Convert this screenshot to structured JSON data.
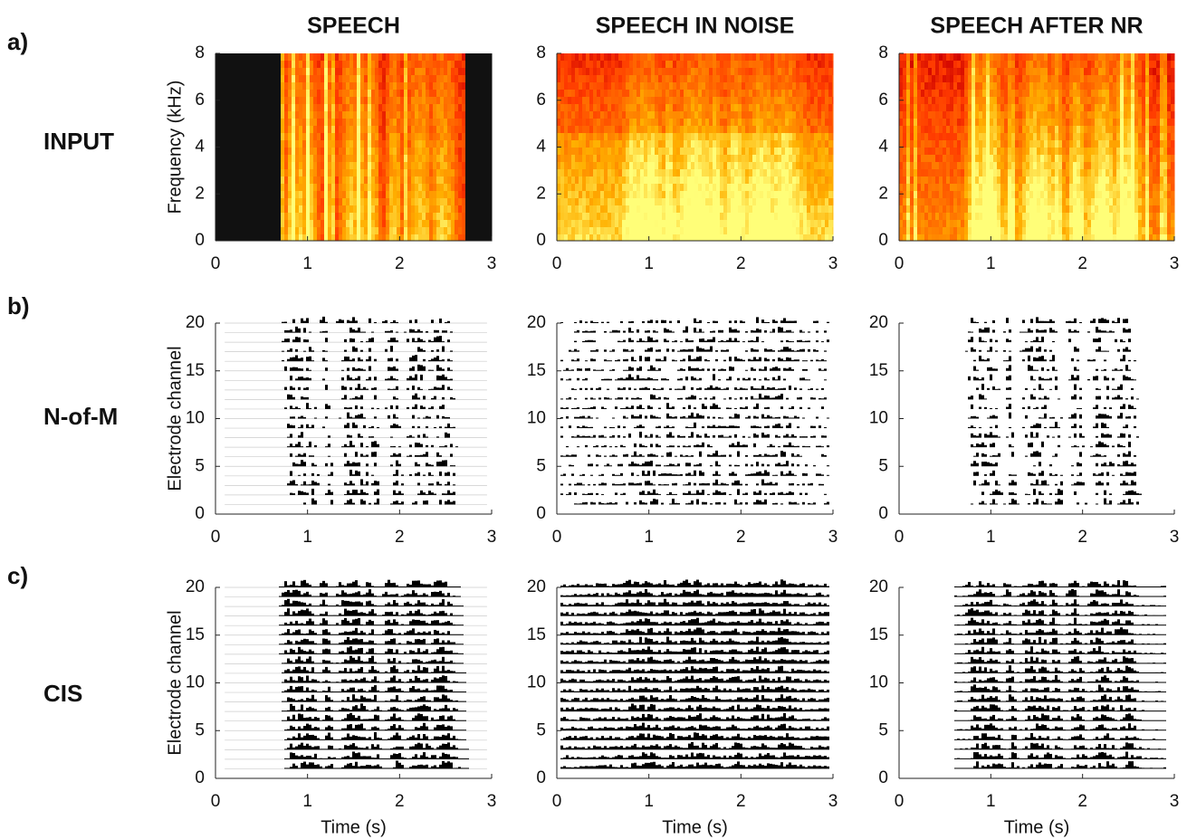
{
  "chart_data": [
    {
      "type": "spectrogram",
      "title": "SPEECH",
      "panel_label": "a)",
      "row_label": "INPUT",
      "ylabel": "Frequency (kHz)",
      "xlim": [
        0,
        3
      ],
      "ylim": [
        0,
        8
      ],
      "xticks": [
        0,
        1,
        2,
        3
      ],
      "yticks": [
        0,
        2,
        4,
        6,
        8
      ]
    },
    {
      "type": "spectrogram",
      "title": "SPEECH IN NOISE",
      "xlim": [
        0,
        3
      ],
      "ylim": [
        0,
        8
      ],
      "xticks": [
        0,
        1,
        2,
        3
      ],
      "yticks": [
        0,
        2,
        4,
        6,
        8
      ]
    },
    {
      "type": "spectrogram",
      "title": "SPEECH AFTER NR",
      "xlim": [
        0,
        3
      ],
      "ylim": [
        0,
        8
      ],
      "xticks": [
        0,
        1,
        2,
        3
      ],
      "yticks": [
        0,
        2,
        4,
        6,
        8
      ]
    },
    {
      "type": "electrodogram",
      "panel_label": "b)",
      "row_label": "N-of-M",
      "ylabel": "Electrode channel",
      "xlim": [
        0,
        3
      ],
      "ylim": [
        0,
        20
      ],
      "xticks": [
        0,
        1,
        2,
        3
      ],
      "yticks": [
        0,
        5,
        10,
        15,
        20
      ]
    },
    {
      "type": "electrodogram",
      "xlim": [
        0,
        3
      ],
      "ylim": [
        0,
        20
      ],
      "xticks": [
        0,
        1,
        2,
        3
      ],
      "yticks": [
        0,
        5,
        10,
        15,
        20
      ]
    },
    {
      "type": "electrodogram",
      "xlim": [
        0,
        3
      ],
      "ylim": [
        0,
        20
      ],
      "xticks": [
        0,
        1,
        2,
        3
      ],
      "yticks": [
        0,
        5,
        10,
        15,
        20
      ]
    },
    {
      "type": "electrodogram",
      "panel_label": "c)",
      "row_label": "CIS",
      "ylabel": "Electrode channel",
      "xlabel": "Time (s)",
      "xlim": [
        0,
        3
      ],
      "ylim": [
        0,
        20
      ],
      "xticks": [
        0,
        1,
        2,
        3
      ],
      "yticks": [
        0,
        5,
        10,
        15,
        20
      ]
    },
    {
      "type": "electrodogram",
      "xlabel": "Time (s)",
      "xlim": [
        0,
        3
      ],
      "ylim": [
        0,
        20
      ],
      "xticks": [
        0,
        1,
        2,
        3
      ],
      "yticks": [
        0,
        5,
        10,
        15,
        20
      ]
    },
    {
      "type": "electrodogram",
      "xlabel": "Time (s)",
      "xlim": [
        0,
        3
      ],
      "ylim": [
        0,
        20
      ],
      "xticks": [
        0,
        1,
        2,
        3
      ],
      "yticks": [
        0,
        5,
        10,
        15,
        20
      ]
    }
  ]
}
